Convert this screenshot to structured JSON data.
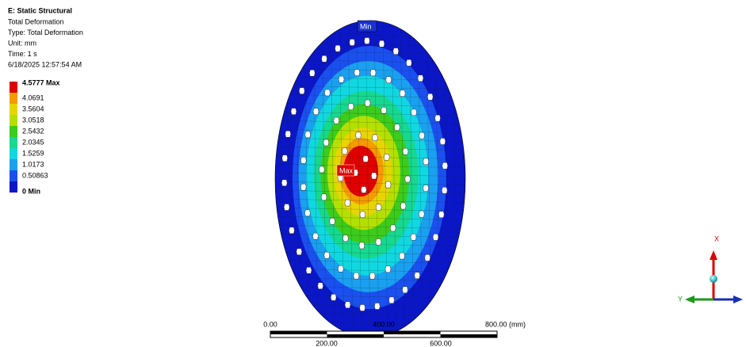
{
  "header": {
    "title": "E: Static Structural",
    "lines": [
      "Total Deformation",
      "Type: Total Deformation",
      "Unit: mm",
      "Time: 1 s",
      "6/18/2025 12:57:54 AM"
    ]
  },
  "legend": [
    {
      "label": "4.5777 Max",
      "color": "#e00000"
    },
    {
      "label": "4.0691",
      "color": "#f59a00"
    },
    {
      "label": "3.5604",
      "color": "#e8d400"
    },
    {
      "label": "3.0518",
      "color": "#b4e000"
    },
    {
      "label": "2.5432",
      "color": "#3ccc1c"
    },
    {
      "label": "2.0345",
      "color": "#16d890"
    },
    {
      "label": "1.5259",
      "color": "#10d8e0"
    },
    {
      "label": "1.0173",
      "color": "#1aa0f0"
    },
    {
      "label": "0.50863",
      "color": "#1a50f0"
    },
    {
      "label": "0 Min",
      "color": "#0a16c8"
    }
  ],
  "model": {
    "min_label": "Min",
    "max_label": "Max"
  },
  "scale_bar": {
    "top": [
      "0.00",
      "400.00",
      "800.00 (mm)"
    ],
    "bottom": [
      "200.00",
      "600.00"
    ]
  },
  "triad": {
    "x": "X",
    "y": "Y"
  }
}
